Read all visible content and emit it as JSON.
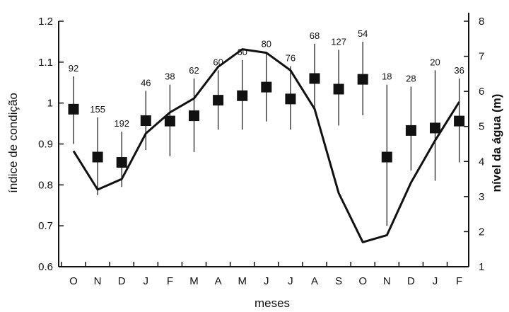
{
  "chart_data": {
    "type": "line",
    "xlabel": "meses",
    "ylabel_left": "índice de condição",
    "ylabel_right": "nível da água (m)",
    "categories": [
      "O",
      "N",
      "D",
      "J",
      "F",
      "M",
      "A",
      "M",
      "J",
      "J",
      "A",
      "S",
      "O",
      "N",
      "D",
      "J",
      "F"
    ],
    "ylim_left": [
      0.6,
      1.2
    ],
    "yticks_left": [
      "0.6",
      "0.7",
      "0.8",
      "0.9",
      "1",
      "1.1",
      "1.2"
    ],
    "ylim_right": [
      1,
      8
    ],
    "yticks_right": [
      "1",
      "2",
      "3",
      "4",
      "5",
      "6",
      "7",
      "8"
    ],
    "series": [
      {
        "kind": "markers-with-error-bars",
        "axis": "left",
        "values": [
          0.985,
          0.868,
          0.855,
          0.957,
          0.956,
          0.969,
          1.007,
          1.018,
          1.039,
          1.01,
          1.06,
          1.034,
          1.058,
          0.868,
          0.933,
          0.939,
          0.956
        ],
        "error_low": [
          0.9,
          0.775,
          0.795,
          0.885,
          0.87,
          0.88,
          0.935,
          0.935,
          0.955,
          0.935,
          0.98,
          0.945,
          0.97,
          0.7,
          0.835,
          0.81,
          0.855
        ],
        "error_high": [
          1.065,
          0.965,
          0.93,
          1.03,
          1.045,
          1.06,
          1.08,
          1.105,
          1.125,
          1.09,
          1.145,
          1.13,
          1.15,
          1.045,
          1.04,
          1.08,
          1.06
        ],
        "sample_sizes": [
          "92",
          "155",
          "192",
          "46",
          "38",
          "62",
          "60",
          "60",
          "80",
          "76",
          "68",
          "127",
          "54",
          "18",
          "28",
          "20",
          "36"
        ]
      },
      {
        "kind": "line",
        "axis": "right",
        "values": [
          4.3,
          3.2,
          3.5,
          4.8,
          5.4,
          5.8,
          6.7,
          7.2,
          7.1,
          6.6,
          5.5,
          3.1,
          1.7,
          1.9,
          3.4,
          4.6,
          5.7
        ]
      }
    ]
  }
}
